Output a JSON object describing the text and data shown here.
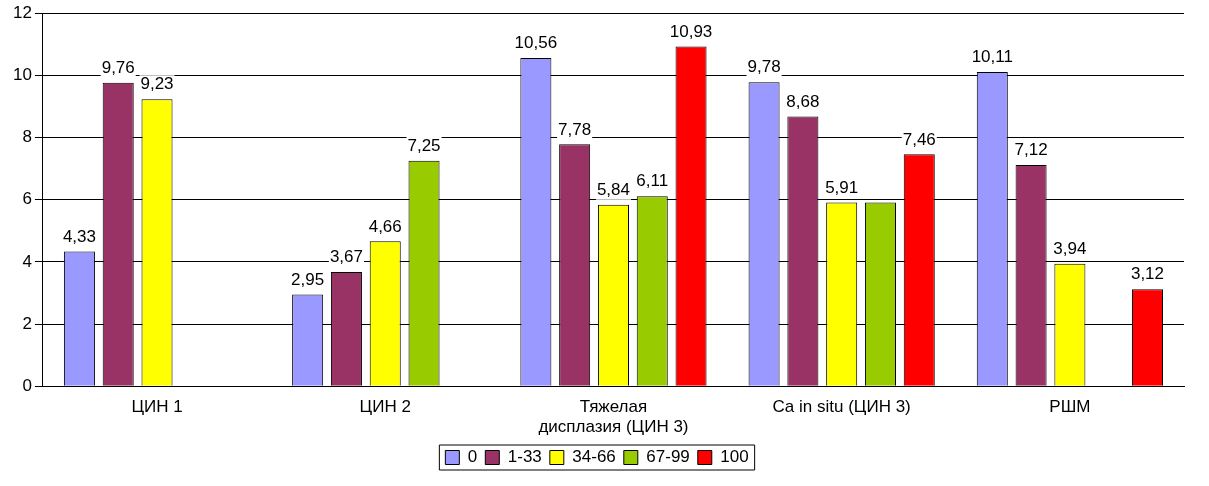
{
  "chart_data": {
    "type": "bar",
    "categories": [
      "ЦИН 1",
      "ЦИН 2",
      "Тяжелая\nдисплазия (ЦИН 3)",
      "Ca in situ (ЦИН 3)",
      "РШМ"
    ],
    "series": [
      {
        "name": "0",
        "color": "#9999ff",
        "values": [
          4.33,
          2.95,
          10.56,
          9.78,
          10.11
        ],
        "value_labels": [
          "4,33",
          "2,95",
          "10,56",
          "9,78",
          "10,11"
        ]
      },
      {
        "name": "1-33",
        "color": "#993366",
        "values": [
          9.76,
          3.67,
          7.78,
          8.68,
          7.12
        ],
        "value_labels": [
          "9,76",
          "3,67",
          "7,78",
          "8,68",
          "7,12"
        ]
      },
      {
        "name": "34-66",
        "color": "#ffff00",
        "values": [
          9.23,
          4.66,
          5.84,
          5.91,
          3.94
        ],
        "value_labels": [
          "9,23",
          "4,66",
          "5,84",
          "5,91",
          "3,94"
        ]
      },
      {
        "name": "67-99",
        "color": "#99cc00",
        "values": [
          null,
          7.25,
          6.11,
          5.91,
          null
        ],
        "value_labels": [
          null,
          "7,25",
          "6,11",
          null,
          null
        ]
      },
      {
        "name": "100",
        "color": "#ff0000",
        "values": [
          null,
          null,
          10.93,
          7.46,
          3.12
        ],
        "value_labels": [
          null,
          null,
          "10,93",
          "7,46",
          "3,12"
        ]
      }
    ],
    "ylim": [
      0,
      12
    ],
    "yticks": [
      0,
      2,
      4,
      6,
      8,
      10,
      12
    ],
    "grid": "y",
    "legend": "bottom"
  }
}
